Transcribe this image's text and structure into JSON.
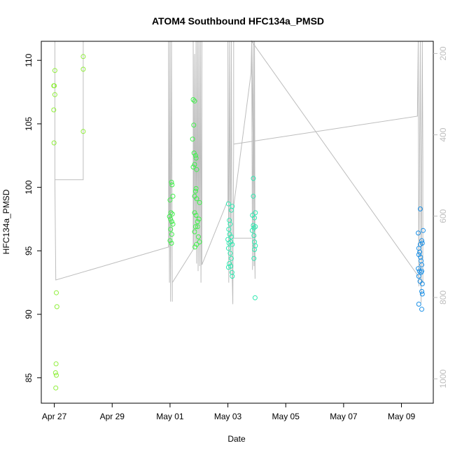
{
  "chart_data": {
    "type": "scatter",
    "title": "ATOM4 Southbound HFC134a_PMSD",
    "xlabel": "Date",
    "ylabel": "HFC134a_PMSD",
    "x_ticks": [
      {
        "label": "Apr 27",
        "day": 0
      },
      {
        "label": "Apr 29",
        "day": 2
      },
      {
        "label": "May 01",
        "day": 4
      },
      {
        "label": "May 03",
        "day": 6
      },
      {
        "label": "May 05",
        "day": 8
      },
      {
        "label": "May 07",
        "day": 10
      },
      {
        "label": "May 09",
        "day": 12
      }
    ],
    "xlim": [
      -0.45,
      13.1
    ],
    "ylim": [
      83,
      111.5
    ],
    "y_ticks": [
      85,
      90,
      95,
      100,
      105,
      110
    ],
    "y2_ticks": [
      200,
      400,
      600,
      800,
      1000
    ],
    "y2lim": [
      1060,
      170
    ],
    "grid": false,
    "colors": {
      "axis": "#000000",
      "secondary_axis": "#bdbdbd",
      "line": "#bdbdbd",
      "group1": "#8fef3a",
      "group2": "#3ff04a",
      "group3": "#2fe8b0",
      "group4": "#1a8fe6"
    },
    "groups": [
      {
        "color_key": "group1",
        "points": [
          [
            0.02,
            109.2
          ],
          [
            -0.02,
            108.0
          ],
          [
            0.0,
            108.0
          ],
          [
            0.02,
            107.3
          ],
          [
            -0.02,
            106.1
          ],
          [
            -0.01,
            103.5
          ],
          [
            0.07,
            91.7
          ],
          [
            0.09,
            90.6
          ],
          [
            0.06,
            86.1
          ],
          [
            0.04,
            85.4
          ],
          [
            0.07,
            85.2
          ],
          [
            0.05,
            84.2
          ],
          [
            1.0,
            110.3
          ],
          [
            1.0,
            109.3
          ],
          [
            1.0,
            104.4
          ]
        ]
      },
      {
        "color_key": "group2",
        "points": [
          [
            4.05,
            100.4
          ],
          [
            4.07,
            100.2
          ],
          [
            4.1,
            99.3
          ],
          [
            4.0,
            99.0
          ],
          [
            4.03,
            98.0
          ],
          [
            4.08,
            97.9
          ],
          [
            3.98,
            97.7
          ],
          [
            4.02,
            97.5
          ],
          [
            4.06,
            97.3
          ],
          [
            4.1,
            97.1
          ],
          [
            4.02,
            96.7
          ],
          [
            4.06,
            96.3
          ],
          [
            4.0,
            95.8
          ],
          [
            4.05,
            95.6
          ],
          [
            4.8,
            106.9
          ],
          [
            4.85,
            106.8
          ],
          [
            4.82,
            104.9
          ],
          [
            4.78,
            103.8
          ],
          [
            4.83,
            102.7
          ],
          [
            4.88,
            102.5
          ],
          [
            4.9,
            102.3
          ],
          [
            4.85,
            101.8
          ],
          [
            4.8,
            101.6
          ],
          [
            4.92,
            101.4
          ],
          [
            4.9,
            99.9
          ],
          [
            4.88,
            99.7
          ],
          [
            4.85,
            99.3
          ],
          [
            4.92,
            99.1
          ],
          [
            5.02,
            98.8
          ],
          [
            4.85,
            98.0
          ],
          [
            4.9,
            97.8
          ],
          [
            5.0,
            97.5
          ],
          [
            4.95,
            97.3
          ],
          [
            4.88,
            96.9
          ],
          [
            4.95,
            96.9
          ],
          [
            4.85,
            96.5
          ],
          [
            4.98,
            96.1
          ],
          [
            5.02,
            95.7
          ],
          [
            4.92,
            95.5
          ],
          [
            4.86,
            95.3
          ]
        ]
      },
      {
        "color_key": "group3",
        "points": [
          [
            6.02,
            98.7
          ],
          [
            6.15,
            98.5
          ],
          [
            6.12,
            98.2
          ],
          [
            6.05,
            97.4
          ],
          [
            6.08,
            97.1
          ],
          [
            6.03,
            96.7
          ],
          [
            6.06,
            96.3
          ],
          [
            6.12,
            96.1
          ],
          [
            6.0,
            95.9
          ],
          [
            6.1,
            95.7
          ],
          [
            6.04,
            95.6
          ],
          [
            6.15,
            95.5
          ],
          [
            6.02,
            95.2
          ],
          [
            6.08,
            94.8
          ],
          [
            6.12,
            94.4
          ],
          [
            6.05,
            94.0
          ],
          [
            6.1,
            93.8
          ],
          [
            6.02,
            93.7
          ],
          [
            6.14,
            93.3
          ],
          [
            6.15,
            93.0
          ],
          [
            6.88,
            100.7
          ],
          [
            6.88,
            99.3
          ],
          [
            6.85,
            97.8
          ],
          [
            6.95,
            98.0
          ],
          [
            6.92,
            97.6
          ],
          [
            6.88,
            97.0
          ],
          [
            6.95,
            96.9
          ],
          [
            6.9,
            96.8
          ],
          [
            6.84,
            96.6
          ],
          [
            6.9,
            96.2
          ],
          [
            6.92,
            95.7
          ],
          [
            6.95,
            95.4
          ],
          [
            6.92,
            95.1
          ],
          [
            6.9,
            94.4
          ],
          [
            6.94,
            91.3
          ]
        ]
      },
      {
        "color_key": "group4",
        "points": [
          [
            12.65,
            98.3
          ],
          [
            12.75,
            96.6
          ],
          [
            12.58,
            96.4
          ],
          [
            12.7,
            95.8
          ],
          [
            12.72,
            95.6
          ],
          [
            12.65,
            95.5
          ],
          [
            12.6,
            95.2
          ],
          [
            12.63,
            94.9
          ],
          [
            12.6,
            94.7
          ],
          [
            12.66,
            94.5
          ],
          [
            12.68,
            94.2
          ],
          [
            12.7,
            93.9
          ],
          [
            12.58,
            93.6
          ],
          [
            12.62,
            93.4
          ],
          [
            12.7,
            93.4
          ],
          [
            12.68,
            93.3
          ],
          [
            12.6,
            93.0
          ],
          [
            12.64,
            92.6
          ],
          [
            12.72,
            92.4
          ],
          [
            12.7,
            91.8
          ],
          [
            12.72,
            91.6
          ],
          [
            12.6,
            90.8
          ],
          [
            12.7,
            90.4
          ]
        ]
      }
    ],
    "line_path": [
      [
        0.02,
        111.5
      ],
      [
        0.02,
        100.6
      ],
      [
        1.0,
        100.6
      ],
      [
        1.0,
        111.5
      ],
      [
        1.0,
        100.6
      ],
      [
        0.02,
        100.6
      ],
      [
        0.05,
        92.7
      ],
      [
        3.95,
        95.3
      ],
      [
        3.95,
        111.5
      ],
      [
        3.98,
        92.5
      ],
      [
        4.0,
        111.5
      ],
      [
        4.02,
        91.0
      ],
      [
        4.05,
        111.5
      ],
      [
        4.08,
        91.0
      ],
      [
        4.08,
        92.5
      ],
      [
        4.8,
        95.1
      ],
      [
        4.8,
        111.5
      ],
      [
        4.83,
        95.1
      ],
      [
        4.85,
        110.5
      ],
      [
        4.88,
        95.6
      ],
      [
        4.9,
        111.5
      ],
      [
        4.92,
        94.0
      ],
      [
        4.95,
        111.5
      ],
      [
        4.97,
        93.4
      ],
      [
        5.0,
        111.5
      ],
      [
        5.02,
        93.8
      ],
      [
        5.05,
        111.5
      ],
      [
        5.07,
        92.5
      ],
      [
        5.1,
        111.5
      ],
      [
        5.1,
        93.9
      ],
      [
        6.0,
        99.0
      ],
      [
        6.0,
        111.5
      ],
      [
        6.03,
        92.5
      ],
      [
        6.06,
        111.5
      ],
      [
        6.09,
        93.2
      ],
      [
        6.12,
        111.5
      ],
      [
        6.14,
        93.8
      ],
      [
        6.17,
        90.8
      ],
      [
        6.2,
        103.4
      ],
      [
        6.2,
        111.5
      ],
      [
        6.2,
        103.4
      ],
      [
        12.55,
        105.6
      ],
      [
        12.58,
        111.5
      ],
      [
        12.6,
        92.2
      ],
      [
        12.65,
        111.5
      ],
      [
        12.68,
        90.9
      ],
      [
        12.72,
        111.5
      ],
      [
        12.74,
        102.2
      ],
      [
        12.74,
        92.5
      ],
      [
        6.82,
        111.5
      ],
      [
        6.85,
        93.5
      ],
      [
        6.88,
        111.5
      ],
      [
        6.9,
        93.8
      ],
      [
        6.92,
        111.5
      ],
      [
        6.94,
        92.8
      ],
      [
        6.82,
        111.5
      ],
      [
        6.8,
        109.0
      ],
      [
        6.2,
        98.5
      ],
      [
        6.2,
        96.0
      ],
      [
        6.82,
        96.0
      ]
    ]
  }
}
